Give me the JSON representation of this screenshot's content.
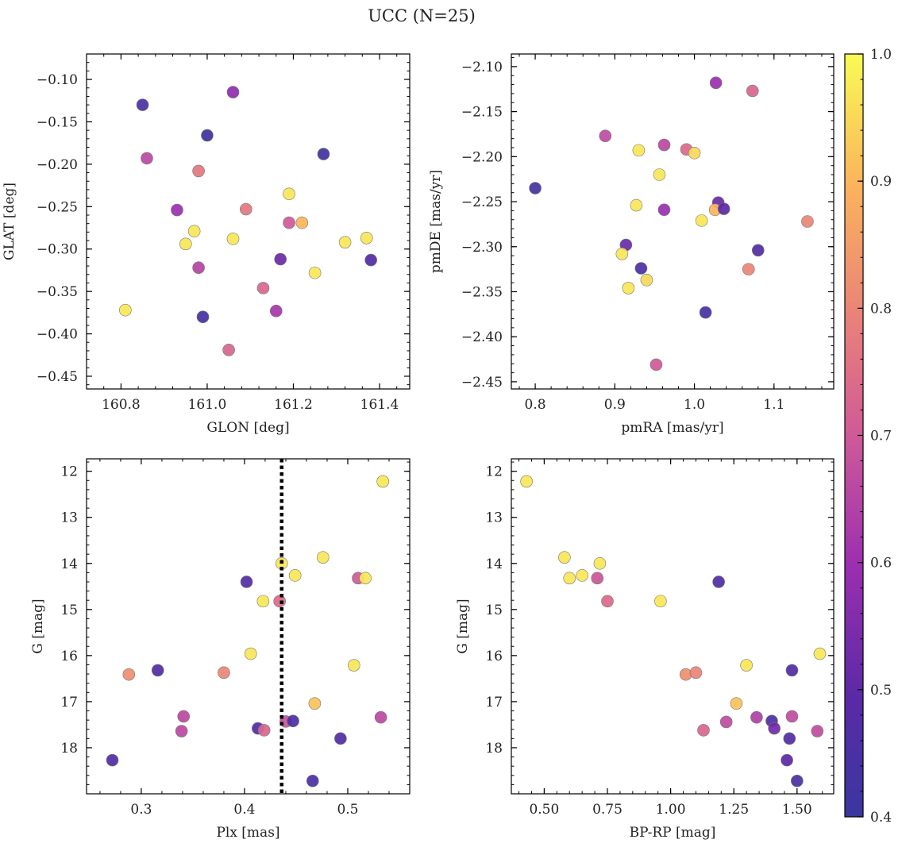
{
  "figure": {
    "title": "UCC (N=25)"
  },
  "colorbar": {
    "min": 0.4,
    "max": 1.0,
    "ticks": [
      "0.4",
      "0.5",
      "0.6",
      "0.7",
      "0.8",
      "0.9",
      "1.0"
    ],
    "colormap": "plasma"
  },
  "colors": {
    "axis": "#000000",
    "marker_edge": "#777777",
    "ref_line": "#000000"
  },
  "chart_data": [
    {
      "type": "scatter",
      "title": "",
      "xlabel": "GLON [deg]",
      "ylabel": "GLAT [deg]",
      "xlim": [
        160.72,
        161.47
      ],
      "ylim": [
        -0.465,
        -0.07
      ],
      "xticks": [
        "160.8",
        "161.0",
        "161.2",
        "161.4"
      ],
      "yticks": [
        "−0.10",
        "−0.15",
        "−0.20",
        "−0.25",
        "−0.30",
        "−0.35",
        "−0.40",
        "−0.45"
      ],
      "points": [
        {
          "x": 160.85,
          "y": -0.13,
          "c": 0.45
        },
        {
          "x": 160.86,
          "y": -0.193,
          "c": 0.66
        },
        {
          "x": 161.06,
          "y": -0.115,
          "c": 0.58
        },
        {
          "x": 161.0,
          "y": -0.166,
          "c": 0.42
        },
        {
          "x": 161.27,
          "y": -0.188,
          "c": 0.42
        },
        {
          "x": 160.98,
          "y": -0.208,
          "c": 0.77
        },
        {
          "x": 160.93,
          "y": -0.254,
          "c": 0.6
        },
        {
          "x": 161.09,
          "y": -0.253,
          "c": 0.77
        },
        {
          "x": 161.19,
          "y": -0.235,
          "c": 0.97
        },
        {
          "x": 161.19,
          "y": -0.269,
          "c": 0.7
        },
        {
          "x": 161.22,
          "y": -0.269,
          "c": 0.9
        },
        {
          "x": 160.97,
          "y": -0.279,
          "c": 0.97
        },
        {
          "x": 160.95,
          "y": -0.294,
          "c": 0.97
        },
        {
          "x": 161.06,
          "y": -0.288,
          "c": 0.97
        },
        {
          "x": 161.32,
          "y": -0.292,
          "c": 0.97
        },
        {
          "x": 161.37,
          "y": -0.287,
          "c": 0.97
        },
        {
          "x": 161.17,
          "y": -0.312,
          "c": 0.52
        },
        {
          "x": 161.38,
          "y": -0.313,
          "c": 0.47
        },
        {
          "x": 160.98,
          "y": -0.322,
          "c": 0.65
        },
        {
          "x": 161.25,
          "y": -0.328,
          "c": 0.97
        },
        {
          "x": 161.13,
          "y": -0.346,
          "c": 0.73
        },
        {
          "x": 161.16,
          "y": -0.373,
          "c": 0.62
        },
        {
          "x": 160.81,
          "y": -0.372,
          "c": 0.97
        },
        {
          "x": 160.99,
          "y": -0.38,
          "c": 0.44
        },
        {
          "x": 161.05,
          "y": -0.419,
          "c": 0.73
        }
      ]
    },
    {
      "type": "scatter",
      "title": "",
      "xlabel": "pmRA [mas/yr]",
      "ylabel": "pmDE [mas/yr]",
      "xlim": [
        0.77,
        1.175
      ],
      "ylim": [
        -2.458,
        -2.086
      ],
      "xticks": [
        "0.8",
        "0.9",
        "1.0",
        "1.1"
      ],
      "yticks": [
        "−2.10",
        "−2.15",
        "−2.20",
        "−2.25",
        "−2.30",
        "−2.35",
        "−2.40",
        "−2.45"
      ],
      "points": [
        {
          "x": 1.027,
          "y": -2.118,
          "c": 0.6
        },
        {
          "x": 1.073,
          "y": -2.127,
          "c": 0.73
        },
        {
          "x": 0.888,
          "y": -2.177,
          "c": 0.67
        },
        {
          "x": 0.962,
          "y": -2.187,
          "c": 0.66
        },
        {
          "x": 0.99,
          "y": -2.192,
          "c": 0.74
        },
        {
          "x": 0.93,
          "y": -2.193,
          "c": 0.97
        },
        {
          "x": 1.0,
          "y": -2.196,
          "c": 0.95
        },
        {
          "x": 0.956,
          "y": -2.22,
          "c": 0.97
        },
        {
          "x": 0.8,
          "y": -2.235,
          "c": 0.43
        },
        {
          "x": 1.03,
          "y": -2.251,
          "c": 0.52
        },
        {
          "x": 0.927,
          "y": -2.254,
          "c": 0.97
        },
        {
          "x": 0.962,
          "y": -2.259,
          "c": 0.6
        },
        {
          "x": 1.026,
          "y": -2.259,
          "c": 0.9
        },
        {
          "x": 1.037,
          "y": -2.258,
          "c": 0.5
        },
        {
          "x": 1.009,
          "y": -2.271,
          "c": 0.97
        },
        {
          "x": 1.142,
          "y": -2.272,
          "c": 0.8
        },
        {
          "x": 0.914,
          "y": -2.298,
          "c": 0.52
        },
        {
          "x": 1.08,
          "y": -2.304,
          "c": 0.47
        },
        {
          "x": 0.909,
          "y": -2.308,
          "c": 0.97
        },
        {
          "x": 0.933,
          "y": -2.324,
          "c": 0.45
        },
        {
          "x": 1.068,
          "y": -2.325,
          "c": 0.8
        },
        {
          "x": 0.94,
          "y": -2.337,
          "c": 0.95
        },
        {
          "x": 0.917,
          "y": -2.346,
          "c": 0.97
        },
        {
          "x": 1.014,
          "y": -2.373,
          "c": 0.44
        },
        {
          "x": 0.952,
          "y": -2.431,
          "c": 0.7
        }
      ]
    },
    {
      "type": "scatter",
      "title": "",
      "xlabel": "Plx [mas]",
      "ylabel": "G [mag]",
      "xlim": [
        0.247,
        0.56
      ],
      "ylim": [
        19.0,
        11.73
      ],
      "xticks": [
        "0.3",
        "0.4",
        "0.5"
      ],
      "yticks": [
        "12",
        "13",
        "14",
        "15",
        "16",
        "17",
        "18"
      ],
      "vline": 0.436,
      "points": [
        {
          "x": 0.534,
          "y": 12.22,
          "c": 0.97
        },
        {
          "x": 0.476,
          "y": 13.87,
          "c": 0.97
        },
        {
          "x": 0.436,
          "y": 14.0,
          "c": 0.97
        },
        {
          "x": 0.449,
          "y": 14.26,
          "c": 0.97
        },
        {
          "x": 0.402,
          "y": 14.4,
          "c": 0.47
        },
        {
          "x": 0.51,
          "y": 14.32,
          "c": 0.7
        },
        {
          "x": 0.517,
          "y": 14.32,
          "c": 0.97
        },
        {
          "x": 0.418,
          "y": 14.82,
          "c": 0.97
        },
        {
          "x": 0.434,
          "y": 14.82,
          "c": 0.74
        },
        {
          "x": 0.406,
          "y": 15.96,
          "c": 0.97
        },
        {
          "x": 0.506,
          "y": 16.21,
          "c": 0.97
        },
        {
          "x": 0.316,
          "y": 16.32,
          "c": 0.47
        },
        {
          "x": 0.288,
          "y": 16.41,
          "c": 0.82
        },
        {
          "x": 0.38,
          "y": 16.37,
          "c": 0.8
        },
        {
          "x": 0.468,
          "y": 17.04,
          "c": 0.92
        },
        {
          "x": 0.341,
          "y": 17.32,
          "c": 0.66
        },
        {
          "x": 0.532,
          "y": 17.34,
          "c": 0.66
        },
        {
          "x": 0.44,
          "y": 17.43,
          "c": 0.69
        },
        {
          "x": 0.447,
          "y": 17.42,
          "c": 0.45
        },
        {
          "x": 0.413,
          "y": 17.58,
          "c": 0.47
        },
        {
          "x": 0.419,
          "y": 17.62,
          "c": 0.73
        },
        {
          "x": 0.339,
          "y": 17.64,
          "c": 0.66
        },
        {
          "x": 0.493,
          "y": 17.8,
          "c": 0.47
        },
        {
          "x": 0.272,
          "y": 18.27,
          "c": 0.46
        },
        {
          "x": 0.466,
          "y": 18.72,
          "c": 0.45
        }
      ]
    },
    {
      "type": "scatter",
      "title": "",
      "xlabel": "BP-RP [mag]",
      "ylabel": "G [mag]",
      "xlim": [
        0.37,
        1.645
      ],
      "ylim": [
        19.0,
        11.73
      ],
      "xticks": [
        "0.50",
        "0.75",
        "1.00",
        "1.25",
        "1.50"
      ],
      "yticks": [
        "12",
        "13",
        "14",
        "15",
        "16",
        "17",
        "18"
      ],
      "points": [
        {
          "x": 0.43,
          "y": 12.22,
          "c": 0.97
        },
        {
          "x": 0.58,
          "y": 13.87,
          "c": 0.97
        },
        {
          "x": 0.72,
          "y": 14.0,
          "c": 0.97
        },
        {
          "x": 0.6,
          "y": 14.32,
          "c": 0.97
        },
        {
          "x": 0.65,
          "y": 14.26,
          "c": 0.97
        },
        {
          "x": 0.71,
          "y": 14.32,
          "c": 0.69
        },
        {
          "x": 1.19,
          "y": 14.4,
          "c": 0.46
        },
        {
          "x": 0.75,
          "y": 14.82,
          "c": 0.74
        },
        {
          "x": 0.96,
          "y": 14.82,
          "c": 0.97
        },
        {
          "x": 1.59,
          "y": 15.96,
          "c": 0.97
        },
        {
          "x": 1.3,
          "y": 16.21,
          "c": 0.97
        },
        {
          "x": 1.48,
          "y": 16.32,
          "c": 0.47
        },
        {
          "x": 1.06,
          "y": 16.41,
          "c": 0.82
        },
        {
          "x": 1.1,
          "y": 16.37,
          "c": 0.8
        },
        {
          "x": 1.26,
          "y": 17.04,
          "c": 0.92
        },
        {
          "x": 1.34,
          "y": 17.34,
          "c": 0.64
        },
        {
          "x": 1.48,
          "y": 17.32,
          "c": 0.67
        },
        {
          "x": 1.4,
          "y": 17.42,
          "c": 0.46
        },
        {
          "x": 1.22,
          "y": 17.44,
          "c": 0.67
        },
        {
          "x": 1.41,
          "y": 17.58,
          "c": 0.53
        },
        {
          "x": 1.13,
          "y": 17.62,
          "c": 0.73
        },
        {
          "x": 1.58,
          "y": 17.64,
          "c": 0.67
        },
        {
          "x": 1.47,
          "y": 17.8,
          "c": 0.47
        },
        {
          "x": 1.46,
          "y": 18.27,
          "c": 0.5
        },
        {
          "x": 1.5,
          "y": 18.72,
          "c": 0.45
        }
      ]
    }
  ]
}
